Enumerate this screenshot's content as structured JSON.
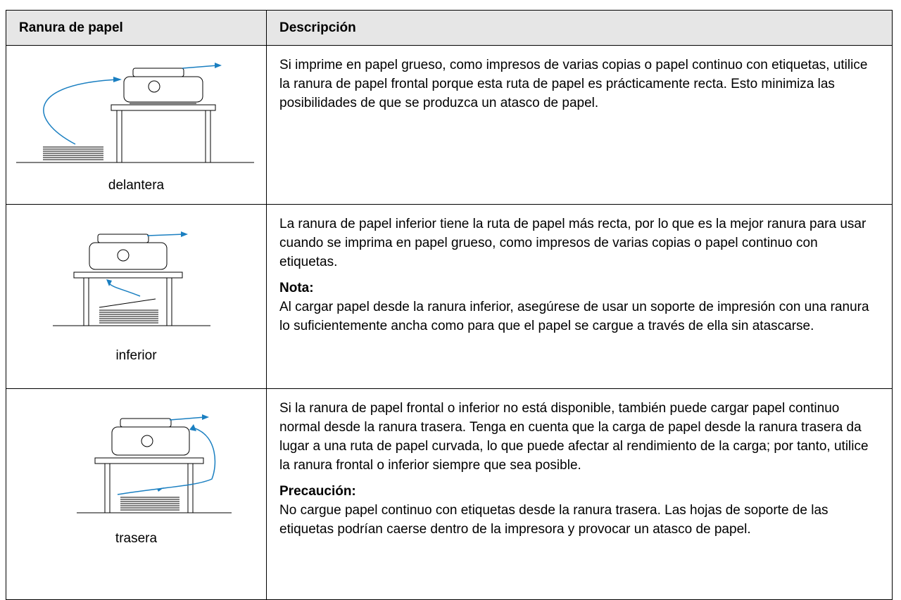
{
  "table": {
    "header": [
      "Ranura de papel",
      "Descripción"
    ],
    "rows": [
      {
        "slot": "delantera",
        "paragraphs": [
          "Si imprime en papel grueso, como impresos de varias copias o papel continuo con etiquetas, utilice la ranura de papel frontal porque esta ruta de papel es prácticamente recta. Esto minimiza las posibilidades de que se produzca un atasco de papel."
        ]
      },
      {
        "slot": "inferior",
        "paragraphs": [
          "La ranura de papel inferior tiene la ruta de papel más recta, por lo que es la mejor ranura para usar cuando se imprima en papel grueso, como impresos de varias copias o papel continuo con etiquetas."
        ],
        "note": {
          "label": "Nota:",
          "text": "Al cargar papel desde la ranura inferior, asegúrese de usar un soporte de impresión con una ranura lo suficientemente ancha como para que el papel se cargue a través de ella sin atascarse."
        }
      },
      {
        "slot": "trasera",
        "paragraphs": [
          "Si la ranura de papel frontal o inferior no está disponible, también puede cargar papel continuo normal desde la ranura trasera. Tenga en cuenta que la carga de papel desde la ranura trasera da lugar a una ruta de papel curvada, lo que puede afectar al rendimiento de la carga; por tanto, utilice la ranura frontal o inferior siempre que sea posible."
        ],
        "note": {
          "label": "Precaución:",
          "text": "No cargue papel continuo con etiquetas desde la ranura trasera. Las hojas de soporte de las etiquetas podrían caerse dentro de la impresora y provocar un atasco de papel."
        }
      }
    ]
  }
}
